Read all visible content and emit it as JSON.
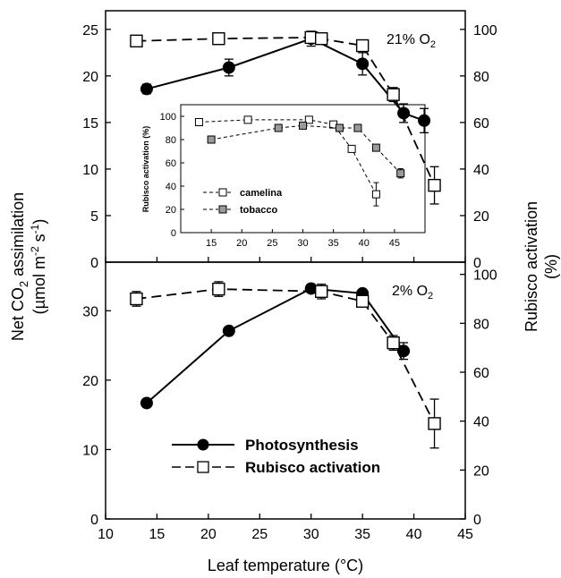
{
  "chart_data": [
    {
      "type": "line",
      "panel": "top",
      "annotation": {
        "base": "21% O",
        "sub": "2"
      },
      "left_ylim": [
        0,
        27
      ],
      "left_yticks": [
        "0",
        "5",
        "10",
        "15",
        "20",
        "25"
      ],
      "right_ylim": [
        0,
        108
      ],
      "right_yticks": [
        "0",
        "20",
        "40",
        "60",
        "80",
        "100"
      ],
      "xlim": [
        10,
        45
      ],
      "series": [
        {
          "name": "Photosynthesis",
          "axis": "left",
          "style": "solid",
          "marker": "filled-circle",
          "x": [
            14,
            22,
            30,
            35,
            39,
            41
          ],
          "y": [
            18.6,
            20.9,
            24.0,
            21.3,
            16.0,
            15.2
          ],
          "err": [
            0.5,
            0.9,
            0.8,
            1.2,
            1.0,
            1.3
          ]
        },
        {
          "name": "Rubisco activation",
          "axis": "right",
          "style": "dashed",
          "marker": "open-square",
          "x": [
            13,
            21,
            30,
            31,
            35,
            38,
            42
          ],
          "y": [
            95,
            96,
            96.5,
            96,
            93,
            72,
            33
          ],
          "err": [
            0,
            0,
            0,
            0,
            0,
            3,
            8
          ]
        }
      ],
      "inset": {
        "ylabel": "Rubisco activation (%)",
        "xlim": [
          10,
          50
        ],
        "xticks": [
          "15",
          "20",
          "25",
          "30",
          "35",
          "40",
          "45"
        ],
        "ylim": [
          0,
          110
        ],
        "yticks": [
          "0",
          "20",
          "40",
          "60",
          "80",
          "100"
        ],
        "series": [
          {
            "name": "camelina",
            "marker": "open-square",
            "x": [
              13,
              21,
              31,
              35,
              38,
              42
            ],
            "y": [
              95,
              97,
              97,
              93,
              72,
              33
            ],
            "err": [
              0,
              0,
              0,
              0,
              0,
              10
            ]
          },
          {
            "name": "tobacco",
            "marker": "gray-square",
            "x": [
              15,
              26,
              30,
              36,
              39,
              42,
              46
            ],
            "y": [
              80,
              90,
              92,
              90,
              90,
              73,
              51
            ],
            "err": [
              0,
              0,
              0,
              0,
              0,
              0,
              4
            ]
          }
        ]
      }
    },
    {
      "type": "line",
      "panel": "bottom",
      "annotation": {
        "base": "2% O",
        "sub": "2"
      },
      "left_ylim": [
        0,
        37
      ],
      "left_yticks": [
        "0",
        "10",
        "20",
        "30"
      ],
      "right_ylim": [
        0,
        105
      ],
      "right_yticks": [
        "0",
        "20",
        "40",
        "60",
        "80",
        "100"
      ],
      "xlim": [
        10,
        45
      ],
      "xticks": [
        "10",
        "15",
        "20",
        "25",
        "30",
        "35",
        "40",
        "45"
      ],
      "series": [
        {
          "name": "Photosynthesis",
          "axis": "left",
          "style": "solid",
          "marker": "filled-circle",
          "x": [
            14,
            22,
            30,
            35,
            39
          ],
          "y": [
            16.7,
            27.1,
            33.2,
            32.5,
            24.2
          ],
          "err": [
            0,
            0,
            0,
            0,
            1.2
          ]
        },
        {
          "name": "Rubisco activation",
          "axis": "right",
          "style": "dashed",
          "marker": "open-square",
          "x": [
            13,
            21,
            31,
            35,
            38,
            42
          ],
          "y": [
            90,
            94,
            93,
            89,
            72,
            39
          ],
          "err": [
            3,
            3,
            3,
            2,
            3,
            10
          ]
        }
      ]
    }
  ],
  "axes": {
    "xlabel": "Leaf temperature (°C)",
    "ylabel_left_line1": {
      "pre": "Net CO",
      "sub": "2",
      "post": " assimilation"
    },
    "ylabel_left_line2": {
      "a": "(µmol m",
      "sup1": "-2",
      "b": " s",
      "sup2": "-1",
      "c": ")"
    },
    "ylabel_right_line1": "Rubisco activation",
    "ylabel_right_line2": "(%)"
  },
  "legend": {
    "photosynthesis": "Photosynthesis",
    "rubisco": "Rubisco activation"
  }
}
